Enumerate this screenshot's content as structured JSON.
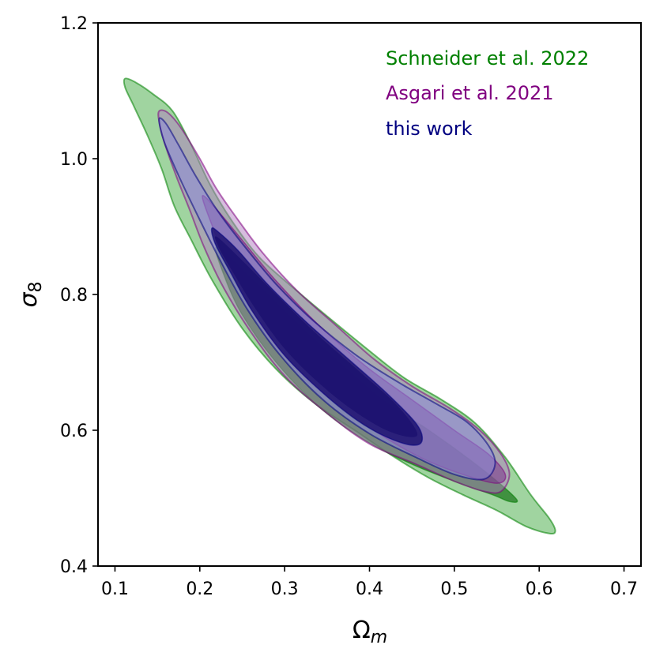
{
  "chart_data": {
    "type": "contour",
    "xlabel_symbol": "Ω",
    "xlabel_sub": "m",
    "ylabel_symbol": "σ",
    "ylabel_sub": "8",
    "xlim": [
      0.08,
      0.72
    ],
    "ylim": [
      0.4,
      1.2
    ],
    "xticks": [
      0.1,
      0.2,
      0.3,
      0.4,
      0.5,
      0.6,
      0.7
    ],
    "yticks": [
      0.4,
      0.6,
      0.8,
      1.0,
      1.2
    ],
    "xtick_labels": [
      "0.1",
      "0.2",
      "0.3",
      "0.4",
      "0.5",
      "0.6",
      "0.7"
    ],
    "ytick_labels": [
      "0.4",
      "0.6",
      "0.8",
      "1.0",
      "1.2"
    ],
    "grid": false,
    "legend_position": "top-right",
    "series": [
      {
        "name": "Schneider et al. 2022",
        "color": "#008000",
        "fill_outer": "#2ca02c",
        "outer_opacity": 0.45,
        "fill_inner": "#006400",
        "inner_opacity": 0.6,
        "outer": [
          [
            0.112,
            1.118
          ],
          [
            0.125,
            1.112
          ],
          [
            0.145,
            1.095
          ],
          [
            0.168,
            1.07
          ],
          [
            0.19,
            1.02
          ],
          [
            0.212,
            0.962
          ],
          [
            0.238,
            0.908
          ],
          [
            0.27,
            0.855
          ],
          [
            0.31,
            0.81
          ],
          [
            0.35,
            0.768
          ],
          [
            0.395,
            0.722
          ],
          [
            0.44,
            0.678
          ],
          [
            0.485,
            0.645
          ],
          [
            0.525,
            0.61
          ],
          [
            0.56,
            0.56
          ],
          [
            0.59,
            0.505
          ],
          [
            0.612,
            0.47
          ],
          [
            0.619,
            0.452
          ],
          [
            0.612,
            0.448
          ],
          [
            0.585,
            0.458
          ],
          [
            0.55,
            0.482
          ],
          [
            0.51,
            0.505
          ],
          [
            0.47,
            0.53
          ],
          [
            0.43,
            0.56
          ],
          [
            0.385,
            0.598
          ],
          [
            0.335,
            0.64
          ],
          [
            0.29,
            0.69
          ],
          [
            0.25,
            0.75
          ],
          [
            0.215,
            0.82
          ],
          [
            0.19,
            0.88
          ],
          [
            0.17,
            0.93
          ],
          [
            0.155,
            0.985
          ],
          [
            0.138,
            1.035
          ],
          [
            0.122,
            1.078
          ],
          [
            0.112,
            1.105
          ]
        ],
        "inner": [
          [
            0.22,
            0.87
          ],
          [
            0.255,
            0.83
          ],
          [
            0.3,
            0.775
          ],
          [
            0.355,
            0.71
          ],
          [
            0.415,
            0.645
          ],
          [
            0.47,
            0.6
          ],
          [
            0.52,
            0.555
          ],
          [
            0.555,
            0.52
          ],
          [
            0.574,
            0.497
          ],
          [
            0.565,
            0.495
          ],
          [
            0.545,
            0.505
          ],
          [
            0.5,
            0.525
          ],
          [
            0.45,
            0.55
          ],
          [
            0.395,
            0.585
          ],
          [
            0.34,
            0.635
          ],
          [
            0.29,
            0.7
          ],
          [
            0.25,
            0.77
          ],
          [
            0.228,
            0.83
          ]
        ]
      },
      {
        "name": "Asgari et al. 2021",
        "color": "#800080",
        "fill_outer": "#b07cc0",
        "outer_opacity": 0.5,
        "fill_inner": "#7a2f8c",
        "inner_opacity": 0.55,
        "outer": [
          [
            0.152,
            1.07
          ],
          [
            0.162,
            1.068
          ],
          [
            0.178,
            1.045
          ],
          [
            0.2,
            1.0
          ],
          [
            0.22,
            0.955
          ],
          [
            0.245,
            0.91
          ],
          [
            0.275,
            0.86
          ],
          [
            0.315,
            0.805
          ],
          [
            0.36,
            0.755
          ],
          [
            0.405,
            0.705
          ],
          [
            0.45,
            0.665
          ],
          [
            0.495,
            0.632
          ],
          [
            0.53,
            0.6
          ],
          [
            0.555,
            0.565
          ],
          [
            0.565,
            0.535
          ],
          [
            0.555,
            0.51
          ],
          [
            0.535,
            0.51
          ],
          [
            0.5,
            0.525
          ],
          [
            0.455,
            0.55
          ],
          [
            0.4,
            0.58
          ],
          [
            0.35,
            0.625
          ],
          [
            0.3,
            0.68
          ],
          [
            0.26,
            0.745
          ],
          [
            0.228,
            0.81
          ],
          [
            0.205,
            0.87
          ],
          [
            0.188,
            0.925
          ],
          [
            0.172,
            0.975
          ],
          [
            0.158,
            1.025
          ],
          [
            0.152,
            1.055
          ]
        ],
        "inner": [
          [
            0.203,
            0.945
          ],
          [
            0.22,
            0.925
          ],
          [
            0.25,
            0.88
          ],
          [
            0.29,
            0.82
          ],
          [
            0.34,
            0.755
          ],
          [
            0.395,
            0.695
          ],
          [
            0.45,
            0.645
          ],
          [
            0.5,
            0.6
          ],
          [
            0.54,
            0.565
          ],
          [
            0.56,
            0.535
          ],
          [
            0.55,
            0.522
          ],
          [
            0.51,
            0.535
          ],
          [
            0.46,
            0.56
          ],
          [
            0.405,
            0.6
          ],
          [
            0.35,
            0.65
          ],
          [
            0.3,
            0.71
          ],
          [
            0.262,
            0.775
          ],
          [
            0.235,
            0.84
          ],
          [
            0.215,
            0.9
          ]
        ]
      },
      {
        "name": "this work",
        "color": "#000080",
        "fill_outer": "#8c8ad8",
        "outer_opacity": 0.55,
        "fill_inner": "#1c1270",
        "inner_opacity": 0.85,
        "outer": [
          [
            0.152,
            1.058
          ],
          [
            0.16,
            1.052
          ],
          [
            0.175,
            1.02
          ],
          [
            0.195,
            0.975
          ],
          [
            0.22,
            0.925
          ],
          [
            0.25,
            0.875
          ],
          [
            0.29,
            0.815
          ],
          [
            0.335,
            0.76
          ],
          [
            0.385,
            0.71
          ],
          [
            0.435,
            0.67
          ],
          [
            0.48,
            0.638
          ],
          [
            0.515,
            0.612
          ],
          [
            0.54,
            0.578
          ],
          [
            0.548,
            0.55
          ],
          [
            0.535,
            0.528
          ],
          [
            0.5,
            0.535
          ],
          [
            0.455,
            0.56
          ],
          [
            0.4,
            0.595
          ],
          [
            0.345,
            0.645
          ],
          [
            0.295,
            0.71
          ],
          [
            0.255,
            0.78
          ],
          [
            0.222,
            0.855
          ],
          [
            0.196,
            0.92
          ],
          [
            0.175,
            0.975
          ],
          [
            0.158,
            1.025
          ]
        ],
        "inner": [
          [
            0.214,
            0.897
          ],
          [
            0.222,
            0.892
          ],
          [
            0.245,
            0.865
          ],
          [
            0.28,
            0.815
          ],
          [
            0.325,
            0.76
          ],
          [
            0.375,
            0.705
          ],
          [
            0.42,
            0.655
          ],
          [
            0.455,
            0.61
          ],
          [
            0.462,
            0.585
          ],
          [
            0.45,
            0.578
          ],
          [
            0.42,
            0.59
          ],
          [
            0.385,
            0.615
          ],
          [
            0.345,
            0.655
          ],
          [
            0.3,
            0.71
          ],
          [
            0.262,
            0.775
          ],
          [
            0.235,
            0.835
          ],
          [
            0.218,
            0.875
          ]
        ],
        "inner_core": [
          [
            0.22,
            0.885
          ],
          [
            0.25,
            0.85
          ],
          [
            0.29,
            0.8
          ],
          [
            0.335,
            0.745
          ],
          [
            0.385,
            0.69
          ],
          [
            0.43,
            0.64
          ],
          [
            0.455,
            0.6
          ],
          [
            0.45,
            0.59
          ],
          [
            0.42,
            0.6
          ],
          [
            0.38,
            0.63
          ],
          [
            0.34,
            0.67
          ],
          [
            0.3,
            0.72
          ],
          [
            0.265,
            0.78
          ],
          [
            0.238,
            0.835
          ],
          [
            0.222,
            0.87
          ]
        ]
      }
    ]
  }
}
